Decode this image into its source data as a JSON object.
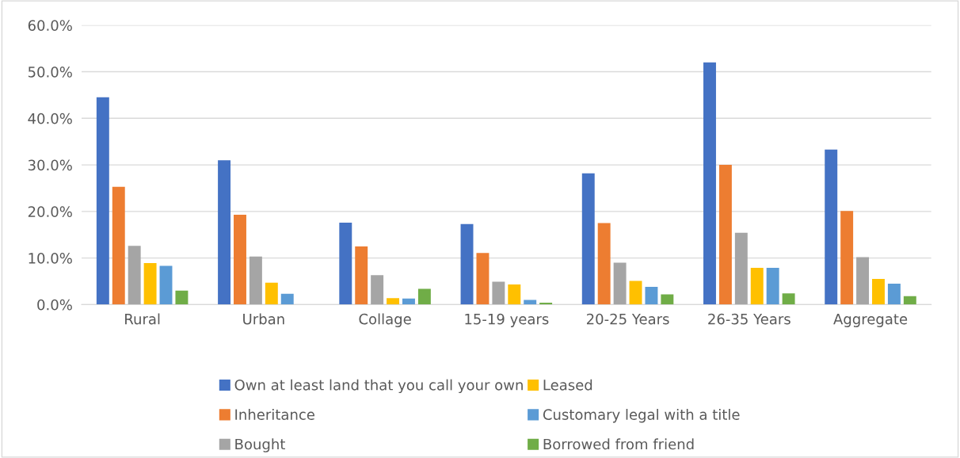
{
  "chart_data": {
    "type": "bar",
    "categories": [
      "Rural",
      "Urban",
      "Collage",
      "15-19 years",
      "20-25 Years",
      "26-35 Years",
      "Aggregate"
    ],
    "series": [
      {
        "name": "Own at least land that you call your own",
        "color": "#4472c4",
        "values": [
          44.5,
          31.0,
          17.6,
          17.3,
          28.2,
          52.0,
          33.3
        ]
      },
      {
        "name": "Inheritance",
        "color": "#ed7d31",
        "values": [
          25.3,
          19.3,
          12.5,
          11.1,
          17.5,
          30.0,
          20.1
        ]
      },
      {
        "name": "Bought",
        "color": "#a5a5a5",
        "values": [
          12.6,
          10.3,
          6.3,
          4.9,
          9.0,
          15.4,
          10.2
        ]
      },
      {
        "name": "Leased",
        "color": "#ffc000",
        "values": [
          8.9,
          4.7,
          1.4,
          4.3,
          5.1,
          7.9,
          5.5
        ]
      },
      {
        "name": "Customary legal with a title",
        "color": "#5b9bd5",
        "values": [
          8.3,
          2.3,
          1.3,
          1.0,
          3.8,
          7.9,
          4.5
        ]
      },
      {
        "name": "Borrowed from friend",
        "color": "#70ad47",
        "values": [
          3.0,
          0,
          3.4,
          0.4,
          2.2,
          2.4,
          1.8
        ]
      }
    ],
    "ylim": [
      0,
      60
    ],
    "yticks": [
      {
        "value": 0,
        "label": "0.0%"
      },
      {
        "value": 10,
        "label": "10.0%"
      },
      {
        "value": 20,
        "label": "20.0%"
      },
      {
        "value": 30,
        "label": "30.0%"
      },
      {
        "value": 40,
        "label": "40.0%"
      },
      {
        "value": 50,
        "label": "50.0%"
      },
      {
        "value": 60,
        "label": "60.0%"
      }
    ],
    "grid": "y",
    "legend": "bottom"
  }
}
